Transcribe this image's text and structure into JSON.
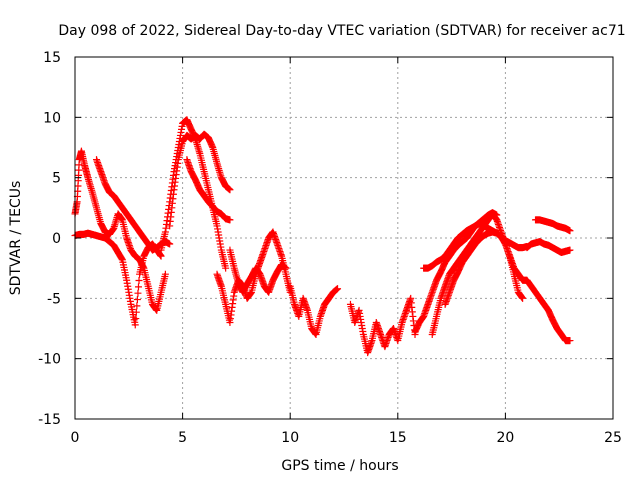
{
  "chart_data": {
    "type": "scatter",
    "title": "Day 098 of 2022, Sidereal Day-to-day VTEC variation (SDTVAR) for receiver ac71",
    "xlabel": "GPS time / hours",
    "ylabel": "SDTVAR / TECUs",
    "xlim": [
      0,
      25
    ],
    "ylim": [
      -15,
      15
    ],
    "xticks": [
      0,
      5,
      10,
      15,
      20,
      25
    ],
    "yticks": [
      -15,
      -10,
      -5,
      0,
      5,
      10,
      15
    ],
    "grid": true,
    "marker": "plus",
    "color": "#ff0000",
    "series": [
      {
        "name": "s1",
        "x": [
          0,
          0.1,
          0.2,
          0.3,
          0.45,
          0.6,
          0.8,
          1.0,
          1.2,
          1.4,
          1.6,
          1.8,
          2.0,
          2.2,
          2.4,
          2.6,
          2.8,
          3.0,
          3.2,
          3.4,
          3.6,
          3.8,
          4.0,
          4.2
        ],
        "y": [
          2.0,
          3.0,
          6.5,
          7.2,
          6.0,
          5.0,
          3.8,
          2.5,
          1.2,
          0.5,
          0.3,
          0.8,
          2.0,
          1.5,
          0.0,
          -1.0,
          -1.5,
          -1.8,
          -2.5,
          -4.0,
          -5.5,
          -6.0,
          -4.5,
          -3.0
        ]
      },
      {
        "name": "s2",
        "x": [
          0,
          0.2,
          0.4,
          0.6,
          0.8,
          1.0,
          1.2,
          1.4,
          1.6,
          1.8,
          2.0,
          2.2,
          2.4,
          2.6,
          2.8,
          3.0,
          3.2,
          3.4,
          3.6,
          3.8,
          4.0
        ],
        "y": [
          0.2,
          0.3,
          0.3,
          0.4,
          0.3,
          0.2,
          0.1,
          0.0,
          -0.3,
          -0.6,
          -1.2,
          -1.8,
          -3.5,
          -5.5,
          -7.2,
          -3.0,
          -1.5,
          -0.8,
          -0.5,
          -1.0,
          -1.5
        ]
      },
      {
        "name": "s3",
        "x": [
          1.0,
          1.2,
          1.4,
          1.6,
          1.8,
          2.0,
          2.2,
          2.4,
          2.6,
          2.8,
          3.0,
          3.2,
          3.4,
          3.6,
          3.8,
          4.0,
          4.2,
          4.4
        ],
        "y": [
          6.5,
          5.5,
          4.5,
          3.8,
          3.5,
          3.0,
          2.5,
          2.0,
          1.5,
          1.0,
          0.5,
          0.0,
          -0.5,
          -1.0,
          -0.8,
          -0.5,
          -0.3,
          -0.5
        ]
      },
      {
        "name": "s4",
        "x": [
          4.0,
          4.2,
          4.4,
          4.6,
          4.8,
          5.0,
          5.2,
          5.4,
          5.6,
          5.8,
          6.0,
          6.2,
          6.4,
          6.6,
          6.8,
          7.0
        ],
        "y": [
          -1.0,
          0.5,
          3.0,
          5.5,
          7.5,
          9.5,
          9.8,
          9.0,
          8.2,
          7.0,
          5.5,
          4.0,
          2.5,
          1.0,
          -1.0,
          -2.5
        ]
      },
      {
        "name": "s5",
        "x": [
          4.4,
          4.6,
          4.8,
          5.0,
          5.2,
          5.4,
          5.6,
          5.8,
          6.0,
          6.2,
          6.4,
          6.6,
          6.8,
          7.0,
          7.2
        ],
        "y": [
          1.0,
          4.0,
          6.5,
          8.0,
          8.5,
          8.2,
          8.5,
          8.2,
          8.6,
          8.3,
          7.5,
          6.2,
          5.0,
          4.3,
          4.0
        ]
      },
      {
        "name": "s6",
        "x": [
          5.2,
          5.4,
          5.6,
          5.8,
          6.0,
          6.2,
          6.4,
          6.6,
          6.8,
          7.0,
          7.2
        ],
        "y": [
          6.5,
          5.5,
          4.8,
          4.0,
          3.5,
          3.0,
          2.6,
          2.2,
          2.0,
          1.6,
          1.5
        ]
      },
      {
        "name": "s7",
        "x": [
          6.6,
          6.8,
          7.0,
          7.2,
          7.4,
          7.6,
          7.8,
          8.0,
          8.2,
          8.4,
          8.6,
          8.8,
          9.0,
          9.2,
          9.4,
          9.6,
          9.8,
          10.0
        ],
        "y": [
          -3.0,
          -4.0,
          -5.5,
          -7.0,
          -4.5,
          -3.5,
          -4.0,
          -5.0,
          -4.5,
          -3.0,
          -2.0,
          -1.0,
          0.0,
          0.5,
          -0.5,
          -1.5,
          -3.0,
          -4.5
        ]
      },
      {
        "name": "s8",
        "x": [
          7.2,
          7.4,
          7.6,
          7.8,
          8.0,
          8.2,
          8.4,
          8.6,
          8.8,
          9.0,
          9.2,
          9.4,
          9.6,
          9.8
        ],
        "y": [
          -1.0,
          -2.5,
          -3.8,
          -4.5,
          -3.8,
          -3.2,
          -2.5,
          -3.0,
          -4.0,
          -4.5,
          -3.5,
          -2.8,
          -2.2,
          -2.5
        ]
      },
      {
        "name": "s9",
        "x": [
          10.0,
          10.2,
          10.4,
          10.6,
          10.8,
          11.0,
          11.2,
          11.4,
          11.6,
          11.8,
          12.0,
          12.2
        ],
        "y": [
          -4.0,
          -5.5,
          -6.5,
          -5.0,
          -6.0,
          -7.5,
          -8.0,
          -6.5,
          -5.5,
          -5.0,
          -4.5,
          -4.2
        ]
      },
      {
        "name": "s10",
        "x": [
          12.8,
          13.0,
          13.2,
          13.4,
          13.6,
          13.8,
          14.0,
          14.2,
          14.4,
          14.6,
          14.8,
          15.0,
          15.2,
          15.4,
          15.6,
          15.8
        ],
        "y": [
          -5.5,
          -7.0,
          -6.0,
          -8.0,
          -9.5,
          -8.5,
          -7.0,
          -8.0,
          -9.0,
          -8.0,
          -7.5,
          -8.5,
          -7.0,
          -6.0,
          -5.0,
          -8.0
        ]
      },
      {
        "name": "s11",
        "x": [
          15.8,
          16.0,
          16.2,
          16.4,
          16.6,
          16.8,
          17.0,
          17.2,
          17.4,
          17.6,
          17.8,
          18.0,
          18.2,
          18.4,
          18.6,
          18.8,
          19.0,
          19.2,
          19.4,
          19.6
        ],
        "y": [
          -7.8,
          -7.0,
          -6.5,
          -5.5,
          -4.5,
          -3.5,
          -2.8,
          -2.0,
          -1.5,
          -1.0,
          -0.6,
          -0.3,
          0.0,
          0.5,
          1.0,
          1.3,
          1.6,
          1.9,
          2.1,
          1.9
        ]
      },
      {
        "name": "s12",
        "x": [
          16.2,
          16.4,
          16.6,
          16.8,
          17.0,
          17.2,
          17.4,
          17.6,
          17.8,
          18.0,
          18.2,
          18.4,
          18.6,
          18.8,
          19.0,
          19.2,
          19.4,
          19.6,
          19.8,
          20.0,
          20.2,
          20.4,
          20.6,
          20.8,
          21.0
        ],
        "y": [
          -2.5,
          -2.5,
          -2.3,
          -2.0,
          -1.8,
          -1.5,
          -1.0,
          -0.5,
          0.0,
          0.3,
          0.6,
          0.8,
          1.0,
          1.2,
          1.0,
          0.8,
          0.6,
          0.4,
          0.1,
          -0.2,
          -0.4,
          -0.6,
          -0.8,
          -0.8,
          -0.7
        ]
      },
      {
        "name": "s13",
        "x": [
          16.6,
          16.8,
          17.0,
          17.2,
          17.4,
          17.6,
          17.8,
          18.0,
          18.2,
          18.4,
          18.6,
          18.8,
          19.0,
          19.2,
          19.4,
          19.6,
          19.8,
          20.0,
          20.2,
          20.4,
          20.6,
          20.8
        ],
        "y": [
          -8.0,
          -6.5,
          -5.0,
          -4.0,
          -3.0,
          -2.5,
          -2.0,
          -1.5,
          -1.0,
          -0.5,
          0.0,
          0.5,
          1.0,
          1.5,
          2.0,
          1.5,
          0.5,
          -0.5,
          -1.5,
          -3.0,
          -4.5,
          -5.0
        ]
      },
      {
        "name": "s14",
        "x": [
          17.2,
          17.4,
          17.6,
          17.8,
          18.0,
          18.2,
          18.4,
          18.6,
          18.8,
          19.0,
          19.2,
          19.4,
          19.6,
          19.8,
          20.0,
          20.2,
          20.4,
          20.6,
          20.8,
          21.0,
          21.2,
          21.4,
          21.6,
          21.8,
          22.0,
          22.2,
          22.4,
          22.6,
          22.8,
          23.0
        ],
        "y": [
          -5.5,
          -4.5,
          -3.5,
          -2.8,
          -2.0,
          -1.5,
          -1.0,
          -0.5,
          -0.1,
          0.2,
          0.4,
          0.5,
          0.4,
          0.1,
          -0.5,
          -1.5,
          -2.5,
          -3.0,
          -3.5,
          -3.5,
          -4.0,
          -4.5,
          -5.0,
          -5.5,
          -6.0,
          -6.8,
          -7.5,
          -8.0,
          -8.5,
          -8.5
        ]
      },
      {
        "name": "s15",
        "x": [
          21.4,
          21.6,
          21.8,
          22.0,
          22.2,
          22.4,
          22.6,
          22.8,
          23.0
        ],
        "y": [
          1.5,
          1.5,
          1.4,
          1.3,
          1.2,
          1.0,
          0.9,
          0.8,
          0.6
        ]
      },
      {
        "name": "s16",
        "x": [
          21.0,
          21.2,
          21.4,
          21.6,
          21.8,
          22.0,
          22.2,
          22.4,
          22.6,
          22.8,
          23.0
        ],
        "y": [
          -0.8,
          -0.5,
          -0.4,
          -0.3,
          -0.5,
          -0.6,
          -0.8,
          -1.0,
          -1.2,
          -1.1,
          -1.0
        ]
      }
    ]
  }
}
